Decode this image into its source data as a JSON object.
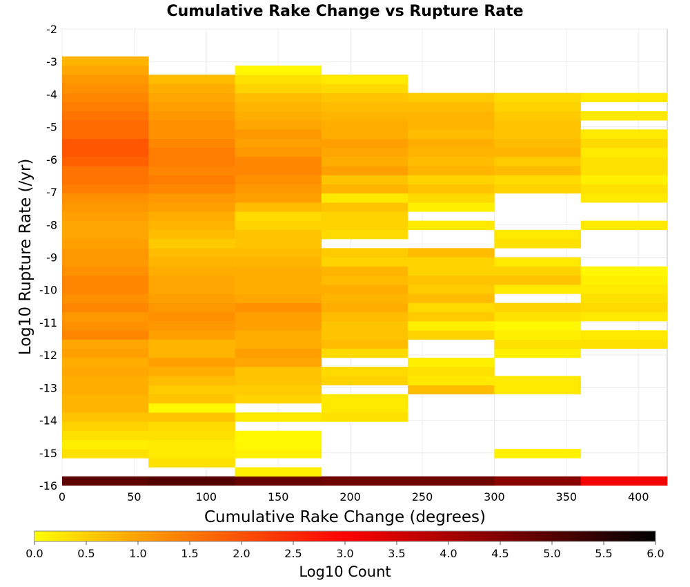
{
  "chart_data": {
    "type": "heatmap",
    "title": "Cumulative Rake Change vs Rupture Rate",
    "xlabel": "Cumulative Rake Change (degrees)",
    "ylabel": "Log10 Rupture Rate (/yr)",
    "xlim": [
      0,
      420
    ],
    "ylim": [
      -16,
      -2
    ],
    "x_ticks": [
      "0",
      "50",
      "100",
      "150",
      "200",
      "250",
      "300",
      "350",
      "400"
    ],
    "y_ticks": [
      "-2",
      "-3",
      "-4",
      "-5",
      "-6",
      "-7",
      "-8",
      "-9",
      "-10",
      "-11",
      "-12",
      "-13",
      "-14",
      "-15",
      "-16"
    ],
    "grid": true,
    "x_bin_edges": [
      0,
      60,
      120,
      180,
      240,
      300,
      360,
      420
    ],
    "y_bin_size": 0.28,
    "colorbar": {
      "label": "Log10 Count",
      "range": [
        0,
        6
      ],
      "ticks": [
        "0.0",
        "0.5",
        "1.0",
        "1.5",
        "2.0",
        "2.5",
        "3.0",
        "3.5",
        "4.0",
        "4.5",
        "5.0",
        "5.5",
        "6.0"
      ],
      "orientation": "horizontal",
      "colormap": [
        "#ffff00",
        "#ff9000",
        "#ff0000",
        "#000000"
      ]
    },
    "columns": [
      {
        "x_range": [
          0,
          60
        ],
        "cells": [
          [
            -16.0,
            4.9
          ],
          [
            -15.16,
            0.4
          ],
          [
            -14.88,
            0.2
          ],
          [
            -14.6,
            0.4
          ],
          [
            -14.32,
            0.6
          ],
          [
            -14.04,
            0.8
          ],
          [
            -13.76,
            1.0
          ],
          [
            -13.48,
            1.0
          ],
          [
            -13.2,
            1.1
          ],
          [
            -12.92,
            1.1
          ],
          [
            -12.64,
            1.2
          ],
          [
            -12.36,
            1.1
          ],
          [
            -12.08,
            1.3
          ],
          [
            -11.8,
            1.2
          ],
          [
            -11.52,
            1.6
          ],
          [
            -11.24,
            1.5
          ],
          [
            -10.96,
            1.4
          ],
          [
            -10.68,
            1.6
          ],
          [
            -10.4,
            1.5
          ],
          [
            -10.12,
            1.6
          ],
          [
            -9.84,
            1.6
          ],
          [
            -9.56,
            1.5
          ],
          [
            -9.28,
            1.4
          ],
          [
            -9.0,
            1.4
          ],
          [
            -8.72,
            1.3
          ],
          [
            -8.44,
            1.2
          ],
          [
            -8.16,
            1.2
          ],
          [
            -7.88,
            1.3
          ],
          [
            -7.6,
            1.4
          ],
          [
            -7.32,
            1.5
          ],
          [
            -7.04,
            1.7
          ],
          [
            -6.76,
            1.8
          ],
          [
            -6.48,
            1.8
          ],
          [
            -6.2,
            2.0
          ],
          [
            -5.92,
            2.1
          ],
          [
            -5.64,
            2.1
          ],
          [
            -5.36,
            1.9
          ],
          [
            -5.08,
            1.9
          ],
          [
            -4.8,
            1.8
          ],
          [
            -4.52,
            1.7
          ],
          [
            -4.24,
            1.6
          ],
          [
            -3.96,
            1.5
          ],
          [
            -3.68,
            1.4
          ],
          [
            -3.4,
            1.2
          ],
          [
            -3.12,
            1.0
          ]
        ]
      },
      {
        "x_range": [
          60,
          120
        ],
        "cells": [
          [
            -16.0,
            5.0
          ],
          [
            -15.44,
            0.4
          ],
          [
            -15.16,
            0.3
          ],
          [
            -14.88,
            0.3
          ],
          [
            -14.6,
            0.4
          ],
          [
            -14.32,
            0.5
          ],
          [
            -14.04,
            0.8
          ],
          [
            -13.76,
            0.1
          ],
          [
            -13.48,
            0.8
          ],
          [
            -13.2,
            0.7
          ],
          [
            -12.92,
            0.9
          ],
          [
            -12.64,
            1.1
          ],
          [
            -12.36,
            1.3
          ],
          [
            -12.08,
            1.0
          ],
          [
            -11.8,
            1.0
          ],
          [
            -11.52,
            1.3
          ],
          [
            -11.24,
            1.4
          ],
          [
            -10.96,
            1.5
          ],
          [
            -10.68,
            1.4
          ],
          [
            -10.4,
            1.3
          ],
          [
            -10.12,
            1.2
          ],
          [
            -9.84,
            1.2
          ],
          [
            -9.56,
            1.1
          ],
          [
            -9.28,
            1.0
          ],
          [
            -9.0,
            0.9
          ],
          [
            -8.72,
            0.7
          ],
          [
            -8.44,
            0.9
          ],
          [
            -8.16,
            1.0
          ],
          [
            -7.88,
            1.1
          ],
          [
            -7.6,
            1.3
          ],
          [
            -7.32,
            1.4
          ],
          [
            -7.04,
            1.6
          ],
          [
            -6.76,
            1.7
          ],
          [
            -6.48,
            1.6
          ],
          [
            -6.2,
            1.7
          ],
          [
            -5.92,
            1.7
          ],
          [
            -5.64,
            1.6
          ],
          [
            -5.36,
            1.5
          ],
          [
            -5.08,
            1.5
          ],
          [
            -4.8,
            1.4
          ],
          [
            -4.52,
            1.3
          ],
          [
            -4.24,
            1.2
          ],
          [
            -3.96,
            1.1
          ],
          [
            -3.68,
            0.9
          ]
        ]
      },
      {
        "x_range": [
          120,
          180
        ],
        "cells": [
          [
            -16.0,
            4.8
          ],
          [
            -15.72,
            0.2
          ],
          [
            -15.16,
            0.2
          ],
          [
            -14.88,
            0.1
          ],
          [
            -14.6,
            0.1
          ],
          [
            -14.04,
            0.3
          ],
          [
            -13.48,
            0.6
          ],
          [
            -13.2,
            0.7
          ],
          [
            -12.92,
            0.8
          ],
          [
            -12.64,
            0.8
          ],
          [
            -12.36,
            1.2
          ],
          [
            -12.08,
            1.3
          ],
          [
            -11.8,
            1.1
          ],
          [
            -11.52,
            1.1
          ],
          [
            -11.24,
            1.3
          ],
          [
            -10.96,
            1.3
          ],
          [
            -10.68,
            1.5
          ],
          [
            -10.4,
            1.2
          ],
          [
            -10.12,
            1.1
          ],
          [
            -9.84,
            1.1
          ],
          [
            -9.56,
            1.1
          ],
          [
            -9.28,
            1.0
          ],
          [
            -9.0,
            0.9
          ],
          [
            -8.72,
            0.8
          ],
          [
            -8.44,
            0.8
          ],
          [
            -8.16,
            0.6
          ],
          [
            -7.88,
            0.5
          ],
          [
            -7.6,
            0.9
          ],
          [
            -7.32,
            1.3
          ],
          [
            -7.04,
            1.4
          ],
          [
            -6.76,
            1.5
          ],
          [
            -6.48,
            1.6
          ],
          [
            -6.2,
            1.6
          ],
          [
            -5.92,
            1.4
          ],
          [
            -5.64,
            1.3
          ],
          [
            -5.36,
            1.4
          ],
          [
            -5.08,
            1.2
          ],
          [
            -4.8,
            1.1
          ],
          [
            -4.52,
            1.0
          ],
          [
            -4.24,
            0.9
          ],
          [
            -3.96,
            0.6
          ],
          [
            -3.68,
            0.4
          ],
          [
            -3.4,
            0.1
          ]
        ]
      },
      {
        "x_range": [
          180,
          240
        ],
        "cells": [
          [
            -16.0,
            4.7
          ],
          [
            -14.04,
            0.4
          ],
          [
            -13.76,
            0.3
          ],
          [
            -13.48,
            0.3
          ],
          [
            -12.92,
            0.6
          ],
          [
            -12.64,
            0.5
          ],
          [
            -12.08,
            0.5
          ],
          [
            -11.8,
            0.9
          ],
          [
            -11.52,
            0.8
          ],
          [
            -11.24,
            0.8
          ],
          [
            -10.96,
            0.9
          ],
          [
            -10.68,
            1.1
          ],
          [
            -10.4,
            1.0
          ],
          [
            -10.12,
            1.1
          ],
          [
            -9.84,
            0.9
          ],
          [
            -9.56,
            1.0
          ],
          [
            -9.28,
            0.6
          ],
          [
            -9.0,
            0.7
          ],
          [
            -8.44,
            0.5
          ],
          [
            -8.16,
            0.6
          ],
          [
            -7.88,
            0.6
          ],
          [
            -7.6,
            0.8
          ],
          [
            -7.32,
            0.3
          ],
          [
            -7.04,
            1.0
          ],
          [
            -6.76,
            0.8
          ],
          [
            -6.48,
            1.3
          ],
          [
            -6.2,
            1.1
          ],
          [
            -5.92,
            1.2
          ],
          [
            -5.64,
            1.3
          ],
          [
            -5.36,
            1.1
          ],
          [
            -5.08,
            1.1
          ],
          [
            -4.8,
            1.0
          ],
          [
            -4.52,
            0.9
          ],
          [
            -4.24,
            0.8
          ],
          [
            -3.96,
            0.5
          ],
          [
            -3.68,
            0.3
          ]
        ]
      },
      {
        "x_range": [
          240,
          300
        ],
        "cells": [
          [
            -16.0,
            4.7
          ],
          [
            -13.2,
            0.9
          ],
          [
            -12.92,
            0.3
          ],
          [
            -12.64,
            0.4
          ],
          [
            -12.36,
            0.2
          ],
          [
            -11.52,
            0.6
          ],
          [
            -11.24,
            0.2
          ],
          [
            -10.96,
            0.7
          ],
          [
            -10.68,
            0.5
          ],
          [
            -10.4,
            0.9
          ],
          [
            -10.12,
            0.7
          ],
          [
            -9.84,
            0.8
          ],
          [
            -9.56,
            0.6
          ],
          [
            -9.28,
            0.6
          ],
          [
            -9.0,
            0.9
          ],
          [
            -8.16,
            0.3
          ],
          [
            -7.6,
            0.2
          ],
          [
            -7.32,
            0.5
          ],
          [
            -7.04,
            0.8
          ],
          [
            -6.76,
            0.6
          ],
          [
            -6.48,
            1.0
          ],
          [
            -6.2,
            0.9
          ],
          [
            -5.92,
            1.0
          ],
          [
            -5.64,
            1.1
          ],
          [
            -5.36,
            0.9
          ],
          [
            -5.08,
            1.0
          ],
          [
            -4.8,
            1.0
          ],
          [
            -4.52,
            0.9
          ],
          [
            -4.24,
            0.7
          ]
        ]
      },
      {
        "x_range": [
          300,
          360
        ],
        "cells": [
          [
            -16.0,
            4.4
          ],
          [
            -15.16,
            0.2
          ],
          [
            -13.2,
            0.3
          ],
          [
            -12.92,
            0.3
          ],
          [
            -12.08,
            0.2
          ],
          [
            -11.8,
            0.4
          ],
          [
            -11.52,
            0.2
          ],
          [
            -11.24,
            0.1
          ],
          [
            -10.96,
            0.4
          ],
          [
            -10.68,
            0.6
          ],
          [
            -10.12,
            0.3
          ],
          [
            -9.84,
            0.8
          ],
          [
            -9.56,
            0.6
          ],
          [
            -9.28,
            0.3
          ],
          [
            -8.72,
            0.4
          ],
          [
            -8.44,
            0.3
          ],
          [
            -7.04,
            0.6
          ],
          [
            -6.76,
            0.5
          ],
          [
            -6.48,
            0.9
          ],
          [
            -6.2,
            0.7
          ],
          [
            -5.92,
            1.0
          ],
          [
            -5.64,
            0.9
          ],
          [
            -5.36,
            0.8
          ],
          [
            -5.08,
            0.8
          ],
          [
            -4.8,
            0.7
          ],
          [
            -4.52,
            0.6
          ],
          [
            -4.24,
            0.5
          ]
        ]
      },
      {
        "x_range": [
          360,
          420
        ],
        "cells": [
          [
            -16.0,
            3.1
          ],
          [
            -11.8,
            0.4
          ],
          [
            -11.52,
            0.3
          ],
          [
            -10.96,
            0.3
          ],
          [
            -10.68,
            0.5
          ],
          [
            -10.4,
            0.4
          ],
          [
            -10.12,
            0.3
          ],
          [
            -9.84,
            0.2
          ],
          [
            -9.56,
            0.1
          ],
          [
            -8.16,
            0.3
          ],
          [
            -7.32,
            0.3
          ],
          [
            -7.04,
            0.4
          ],
          [
            -6.76,
            0.2
          ],
          [
            -6.48,
            0.4
          ],
          [
            -6.2,
            0.4
          ],
          [
            -5.92,
            0.3
          ],
          [
            -5.64,
            0.5
          ],
          [
            -5.36,
            0.3
          ],
          [
            -4.8,
            0.3
          ],
          [
            -4.24,
            0.3
          ]
        ]
      }
    ]
  }
}
